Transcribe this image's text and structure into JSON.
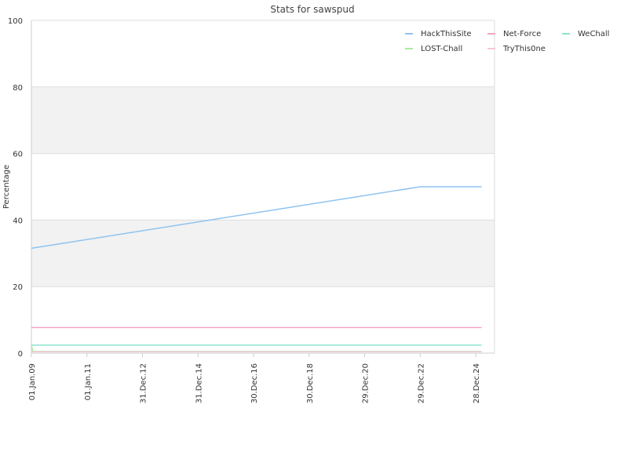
{
  "chart_data": {
    "type": "line",
    "title": "Stats for sawspud",
    "ylabel": "Percentage",
    "xlabel": "",
    "ylim": [
      0,
      100
    ],
    "yticks": [
      0,
      20,
      40,
      60,
      80,
      100
    ],
    "x_ticks": [
      {
        "label": "01.Jan.09",
        "date": "2009-01-01"
      },
      {
        "label": "01.Jan.11",
        "date": "2011-01-01"
      },
      {
        "label": "31.Dec.12",
        "date": "2012-12-31"
      },
      {
        "label": "31.Dec.14",
        "date": "2014-12-31"
      },
      {
        "label": "30.Dec.16",
        "date": "2016-12-30"
      },
      {
        "label": "30.Dec.18",
        "date": "2018-12-30"
      },
      {
        "label": "29.Dec.20",
        "date": "2020-12-29"
      },
      {
        "label": "29.Dec.22",
        "date": "2022-12-29"
      },
      {
        "label": "28.Dec.24",
        "date": "2024-12-28"
      }
    ],
    "xlim": [
      "2009-01-01",
      "2025-09-01"
    ],
    "grid": true,
    "legend_position": "top-right",
    "series": [
      {
        "name": "HackThisSite",
        "color": "#8fc3f0",
        "points": [
          {
            "date": "2009-01-01",
            "value": 31.5
          },
          {
            "date": "2022-12-29",
            "value": 50.0
          },
          {
            "date": "2025-03-15",
            "value": 50.0
          }
        ]
      },
      {
        "name": "Net-Force",
        "color": "#f2a5c6",
        "points": [
          {
            "date": "2009-01-01",
            "value": 7.7
          },
          {
            "date": "2025-03-15",
            "value": 7.7
          }
        ]
      },
      {
        "name": "WeChall",
        "color": "#8ee3cf",
        "points": [
          {
            "date": "2009-01-01",
            "value": 2.4
          },
          {
            "date": "2025-03-15",
            "value": 2.4
          }
        ]
      },
      {
        "name": "LOST-Chall",
        "color": "#a8eaa0",
        "points": [
          {
            "date": "2009-01-01",
            "value": 2.4
          },
          {
            "date": "2009-01-20",
            "value": 0.5
          },
          {
            "date": "2025-03-15",
            "value": 0.5
          }
        ]
      },
      {
        "name": "TryThis0ne",
        "color": "#f5c7d6",
        "points": [
          {
            "date": "2009-01-01",
            "value": 0.4
          },
          {
            "date": "2025-03-15",
            "value": 0.4
          }
        ]
      }
    ]
  }
}
